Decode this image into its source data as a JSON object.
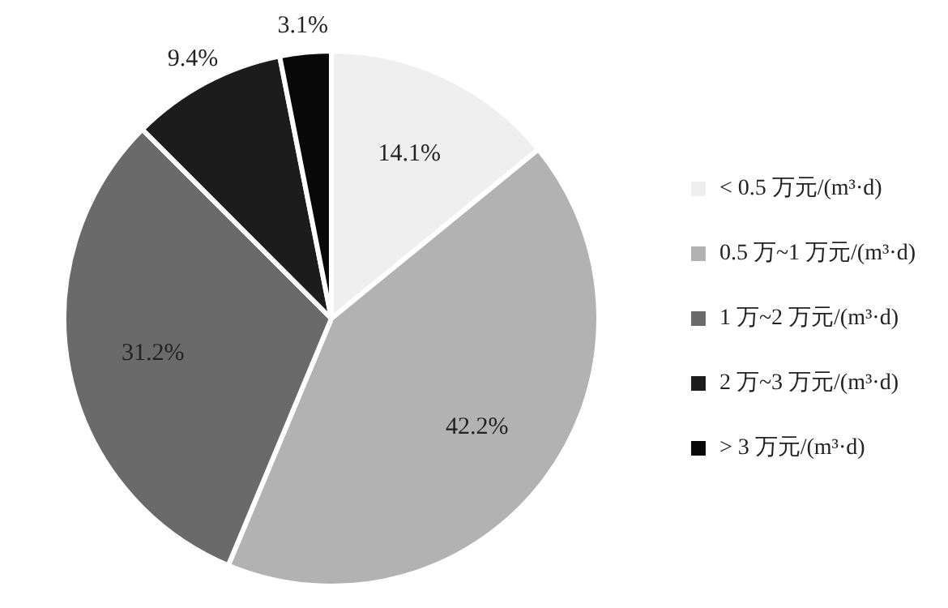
{
  "chart_data": {
    "type": "pie",
    "categories": [
      "< 0.5 万元/(m³·d)",
      "0.5 万~1 万元/(m³·d)",
      "1 万~2 万元/(m³·d)",
      "2 万~3 万元/(m³·d)",
      "> 3 万元/(m³·d)"
    ],
    "values": [
      14.1,
      42.2,
      31.2,
      9.4,
      3.1
    ],
    "value_labels": [
      "14.1%",
      "42.2%",
      "31.2%",
      "9.4%",
      "3.1%"
    ],
    "colors": [
      "#efefef",
      "#b2b2b2",
      "#6a6a6a",
      "#1c1c1c",
      "#080808"
    ],
    "legend": "right"
  }
}
